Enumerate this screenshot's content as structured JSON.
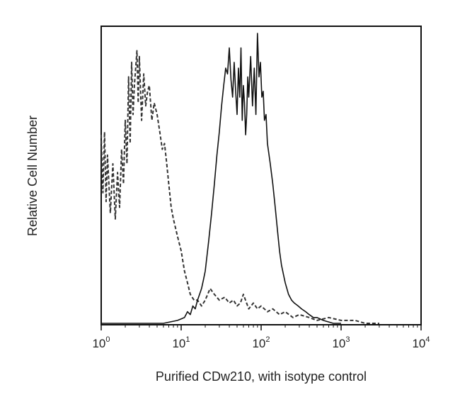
{
  "chart_data": {
    "type": "line",
    "title": "",
    "xlabel": "Purified CDw210, with isotype control",
    "ylabel": "Relative Cell Number",
    "x_scale": "log",
    "xlim": [
      1,
      10000
    ],
    "ylim": [
      0,
      100
    ],
    "x_ticks": [
      {
        "base": "10",
        "exp": "0"
      },
      {
        "base": "10",
        "exp": "1"
      },
      {
        "base": "10",
        "exp": "2"
      },
      {
        "base": "10",
        "exp": "3"
      },
      {
        "base": "10",
        "exp": "4"
      }
    ],
    "grid": false,
    "legend": "none",
    "series": [
      {
        "style": "dashed",
        "color": "#333333",
        "x": [
          1.0,
          1.05,
          1.1,
          1.15,
          1.2,
          1.3,
          1.4,
          1.5,
          1.6,
          1.7,
          1.8,
          1.9,
          2.0,
          2.1,
          2.2,
          2.3,
          2.4,
          2.5,
          2.6,
          2.7,
          2.8,
          2.9,
          3.0,
          3.2,
          3.4,
          3.6,
          3.8,
          4.0,
          4.3,
          4.6,
          5.0,
          5.4,
          5.8,
          6.2,
          6.6,
          7.0,
          7.5,
          8.0,
          9.0,
          10.0,
          11.0,
          12.0,
          13.0,
          14.5,
          16.0,
          18.0,
          20.0,
          23.0,
          26.0,
          30.0,
          35.0,
          40.0,
          45.0,
          50.0,
          55.0,
          60.0,
          70.0,
          80.0,
          90.0,
          100.0,
          120.0,
          140.0,
          170.0,
          200.0,
          250.0,
          300.0,
          400.0,
          500.0,
          700.0,
          1000.0,
          1500.0,
          2000.0,
          3000.0
        ],
        "y": [
          65,
          45,
          66,
          42,
          58,
          38,
          55,
          36,
          52,
          40,
          60,
          48,
          70,
          55,
          85,
          62,
          90,
          72,
          82,
          88,
          94,
          76,
          92,
          70,
          86,
          75,
          80,
          82,
          70,
          76,
          72,
          66,
          60,
          62,
          55,
          48,
          40,
          36,
          30,
          25,
          18,
          14,
          10,
          8,
          8,
          6,
          8,
          12,
          10,
          8,
          9,
          7,
          8,
          6,
          7,
          10,
          5,
          7,
          5,
          6,
          4,
          5,
          3,
          4,
          2,
          3,
          2,
          1,
          2,
          1,
          1,
          0,
          0
        ]
      },
      {
        "style": "solid",
        "color": "#111111",
        "x": [
          1.0,
          3.0,
          6.0,
          9.0,
          11.0,
          12.0,
          13.0,
          14.0,
          15.0,
          16.0,
          17.0,
          18.0,
          19.0,
          20.0,
          22.0,
          24.0,
          26.0,
          28.0,
          30.0,
          32.0,
          34.0,
          36.0,
          38.0,
          40.0,
          42.0,
          44.0,
          46.0,
          48.0,
          50.0,
          52.0,
          54.0,
          56.0,
          58.0,
          60.0,
          62.0,
          64.0,
          66.0,
          68.0,
          70.0,
          74.0,
          78.0,
          82.0,
          86.0,
          90.0,
          94.0,
          98.0,
          102.0,
          106.0,
          110.0,
          115.0,
          120.0,
          130.0,
          140.0,
          150.0,
          160.0,
          170.0,
          180.0,
          200.0,
          220.0,
          240.0,
          260.0,
          290.0,
          320.0,
          360.0,
          400.0,
          450.0,
          500.0,
          600.0,
          800.0,
          1000.0
        ],
        "y": [
          0,
          0,
          0,
          1,
          2,
          4,
          3,
          6,
          5,
          8,
          10,
          12,
          15,
          18,
          28,
          38,
          48,
          58,
          66,
          75,
          82,
          88,
          86,
          95,
          84,
          78,
          90,
          80,
          72,
          88,
          78,
          95,
          70,
          82,
          76,
          65,
          72,
          85,
          78,
          92,
          75,
          88,
          72,
          100,
          85,
          90,
          78,
          80,
          70,
          72,
          62,
          55,
          48,
          40,
          32,
          25,
          20,
          14,
          10,
          8,
          7,
          6,
          5,
          4,
          3,
          2,
          2,
          1,
          0,
          0
        ]
      }
    ]
  }
}
